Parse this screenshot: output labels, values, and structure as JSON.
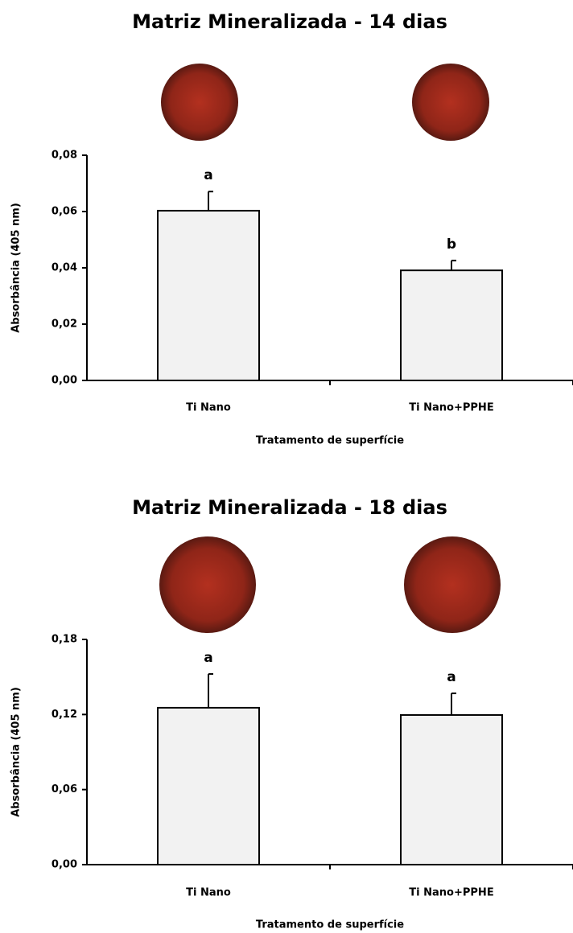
{
  "chart_data": [
    {
      "type": "bar",
      "title": "Matriz Mineralizada - 14 dias",
      "x_label": "Tratamento de superfície",
      "y_label": "Absorbância (405 nm)",
      "categories": [
        "Ti Nano",
        "Ti Nano+PPHE"
      ],
      "values": [
        0.0603,
        0.0391
      ],
      "errors": [
        0.0068,
        0.0035
      ],
      "annotations": [
        "a",
        "b"
      ],
      "color": "#f2f2f2",
      "ylim": [
        0,
        0.08
      ],
      "yticks": [
        {
          "value": 0,
          "label": "0,00"
        },
        {
          "value": 0.02,
          "label": "0,02"
        },
        {
          "value": 0.04,
          "label": "0,04"
        },
        {
          "value": 0.06,
          "label": "0,06"
        },
        {
          "value": 0.08,
          "label": "0,08"
        }
      ]
    },
    {
      "type": "bar",
      "title": "Matriz Mineralizada - 18 dias",
      "x_label": "Tratamento de superfície",
      "y_label": "Absorbância (405 nm)",
      "categories": [
        "Ti Nano",
        "Ti Nano+PPHE"
      ],
      "values": [
        0.1254,
        0.1196
      ],
      "errors": [
        0.027,
        0.0173
      ],
      "annotations": [
        "a",
        "a"
      ],
      "color": "#f2f2f2",
      "ylim": [
        0,
        0.18
      ],
      "yticks": [
        {
          "value": 0,
          "label": "0,00"
        },
        {
          "value": 0.06,
          "label": "0,06"
        },
        {
          "value": 0.12,
          "label": "0,12"
        },
        {
          "value": 0.18,
          "label": "0,18"
        }
      ]
    }
  ]
}
